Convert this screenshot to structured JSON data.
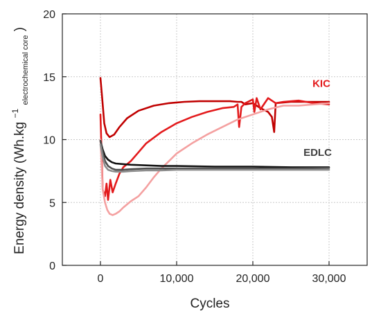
{
  "chart_data": {
    "type": "line",
    "title": "",
    "xlabel": "Cycles",
    "ylabel_parts": {
      "main": "Energy density (Wh.kg",
      "sup": "−1",
      "sub": "electrochemical core",
      "close": ")"
    },
    "xlim": [
      -5000,
      35000
    ],
    "ylim": [
      0,
      20
    ],
    "xticks": [
      0,
      10000,
      20000,
      30000
    ],
    "xtick_labels": [
      "0",
      "10,000",
      "20,000",
      "30,000"
    ],
    "yticks": [
      0,
      5,
      10,
      15,
      20
    ],
    "ytick_labels": [
      "0",
      "5",
      "10",
      "15",
      "20"
    ],
    "grid": true,
    "annotations": [
      {
        "text": "KIC",
        "x": 29000,
        "y": 14.2,
        "color": "#e31a1c"
      },
      {
        "text": "EDLC",
        "x": 28500,
        "y": 8.7,
        "color": "#404040"
      }
    ],
    "series": [
      {
        "group": "KIC",
        "color": "#c00000",
        "x": [
          0,
          200,
          500,
          800,
          1200,
          1800,
          2500,
          3500,
          5000,
          7000,
          9000,
          11000,
          13000,
          15000,
          17000,
          18000,
          18500,
          19000,
          20000,
          21000,
          22000,
          22500,
          22800,
          23000,
          25000,
          27000,
          30000
        ],
        "y": [
          14.9,
          13.5,
          11.3,
          10.5,
          10.2,
          10.4,
          11.0,
          11.7,
          12.3,
          12.7,
          12.9,
          13.0,
          13.05,
          13.05,
          13.05,
          13.0,
          13.0,
          12.8,
          12.9,
          12.5,
          12.2,
          11.8,
          10.6,
          12.9,
          13.0,
          13.0,
          13.0
        ]
      },
      {
        "group": "KIC",
        "color": "#e31a1c",
        "x": [
          0,
          300,
          600,
          800,
          1000,
          1300,
          1600,
          2000,
          2500,
          3000,
          4000,
          5000,
          6000,
          8000,
          10000,
          12000,
          14000,
          16000,
          17500,
          18000,
          18200,
          18500,
          19000,
          20000,
          20200,
          20500,
          21000,
          22000,
          23000,
          24000,
          26000,
          28000,
          30000
        ],
        "y": [
          12.0,
          6.0,
          5.5,
          6.5,
          5.2,
          6.8,
          5.8,
          6.5,
          7.3,
          7.8,
          8.3,
          9.0,
          9.7,
          10.6,
          11.3,
          11.8,
          12.2,
          12.5,
          12.6,
          12.8,
          11.0,
          12.6,
          12.9,
          13.2,
          12.2,
          13.3,
          12.4,
          13.3,
          12.9,
          13.0,
          13.1,
          12.9,
          12.8
        ]
      },
      {
        "group": "KIC",
        "color": "#f4a0a0",
        "x": [
          0,
          300,
          600,
          900,
          1200,
          1600,
          2000,
          2500,
          3000,
          4000,
          5000,
          6000,
          7000,
          8000,
          9000,
          10000,
          12000,
          14000,
          16000,
          18000,
          20000,
          22000,
          24000,
          26000,
          28000,
          30000
        ],
        "y": [
          10.0,
          6.0,
          5.0,
          4.4,
          4.1,
          4.0,
          4.1,
          4.3,
          4.6,
          5.1,
          5.5,
          6.2,
          7.0,
          7.7,
          8.3,
          8.9,
          9.7,
          10.4,
          11.0,
          11.6,
          12.0,
          12.4,
          12.7,
          12.7,
          12.8,
          12.9
        ]
      },
      {
        "group": "EDLC",
        "color": "#111111",
        "x": [
          0,
          300,
          600,
          1000,
          1500,
          2000,
          3000,
          4000,
          6000,
          8000,
          10000,
          15000,
          20000,
          25000,
          30000
        ],
        "y": [
          9.9,
          9.2,
          8.7,
          8.4,
          8.2,
          8.1,
          8.05,
          8.0,
          7.95,
          7.9,
          7.9,
          7.85,
          7.85,
          7.8,
          7.8
        ]
      },
      {
        "group": "EDLC",
        "color": "#4d4d4d",
        "x": [
          0,
          300,
          600,
          1000,
          1500,
          2000,
          3000,
          4000,
          6000,
          8000,
          10000,
          15000,
          20000,
          25000,
          30000
        ],
        "y": [
          9.9,
          9.0,
          8.3,
          7.9,
          7.7,
          7.6,
          7.6,
          7.65,
          7.7,
          7.7,
          7.7,
          7.7,
          7.7,
          7.7,
          7.75
        ]
      },
      {
        "group": "EDLC",
        "color": "#8c8c8c",
        "x": [
          0,
          300,
          600,
          1000,
          1500,
          2000,
          3000,
          4000,
          6000,
          8000,
          10000,
          15000,
          20000,
          25000,
          30000
        ],
        "y": [
          9.6,
          8.6,
          7.9,
          7.6,
          7.5,
          7.45,
          7.45,
          7.5,
          7.55,
          7.55,
          7.6,
          7.6,
          7.6,
          7.6,
          7.6
        ]
      }
    ]
  }
}
